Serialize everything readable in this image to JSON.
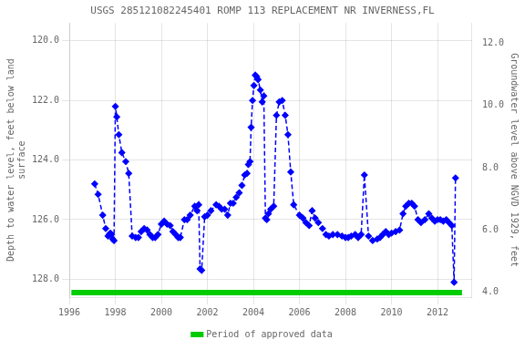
{
  "chart_data": {
    "type": "line",
    "title": "USGS 285121082245401 ROMP 113 REPLACEMENT NR INVERNESS,FL",
    "ylabel": "Depth to water level, feet below land\nsurface",
    "y2label": "Groundwater level above NGVD 1929, feet",
    "xlim": [
      1996.0,
      2013.5
    ],
    "xticks": [
      1996,
      1998,
      2000,
      2002,
      2004,
      2006,
      2008,
      2010,
      2012
    ],
    "ylim": [
      128.6,
      119.4
    ],
    "yticks": [
      {
        "value": 120.0,
        "label": "120.0"
      },
      {
        "value": 122.0,
        "label": "122.0"
      },
      {
        "value": 124.0,
        "label": "124.0"
      },
      {
        "value": 126.0,
        "label": "126.0"
      },
      {
        "value": 128.0,
        "label": "128.0"
      }
    ],
    "y2lim": [
      3.85,
      12.65
    ],
    "y2ticks": [
      {
        "value": 4.0,
        "label": "4.0"
      },
      {
        "value": 6.0,
        "label": "6.0"
      },
      {
        "value": 8.0,
        "label": "8.0"
      },
      {
        "value": 10.0,
        "label": "10.0"
      },
      {
        "value": 12.0,
        "label": "12.0"
      }
    ],
    "grid": true,
    "legend": "bottom",
    "series": [
      {
        "color": "#0000FF",
        "marker": "diamond",
        "line_style": "dashed",
        "x": [
          1997.1,
          1997.25,
          1997.45,
          1997.58,
          1997.68,
          1997.73,
          1997.78,
          1997.83,
          1997.88,
          1997.94,
          1998.0,
          1998.06,
          1998.15,
          1998.28,
          1998.45,
          1998.58,
          1998.73,
          1998.88,
          1999.0,
          1999.12,
          1999.25,
          1999.38,
          1999.5,
          1999.62,
          1999.73,
          1999.85,
          2000.0,
          2000.12,
          2000.25,
          2000.38,
          2000.5,
          2000.62,
          2000.73,
          2000.82,
          2001.0,
          2001.12,
          2001.25,
          2001.45,
          2001.55,
          2001.62,
          2001.68,
          2001.75,
          2001.88,
          2002.0,
          2002.15,
          2002.38,
          2002.5,
          2002.62,
          2002.75,
          2002.88,
          2003.0,
          2003.12,
          2003.25,
          2003.38,
          2003.5,
          2003.62,
          2003.72,
          2003.78,
          2003.85,
          2003.9,
          2003.96,
          2004.02,
          2004.08,
          2004.14,
          2004.2,
          2004.3,
          2004.38,
          2004.45,
          2004.52,
          2004.58,
          2004.65,
          2004.75,
          2004.88,
          2005.0,
          2005.12,
          2005.25,
          2005.38,
          2005.5,
          2005.62,
          2005.75,
          2006.0,
          2006.15,
          2006.28,
          2006.42,
          2006.55,
          2006.68,
          2006.82,
          2007.0,
          2007.15,
          2007.28,
          2007.45,
          2007.65,
          2007.85,
          2008.0,
          2008.12,
          2008.25,
          2008.42,
          2008.55,
          2008.68,
          2008.82,
          2009.0,
          2009.18,
          2009.38,
          2009.5,
          2009.62,
          2009.75,
          2009.88,
          2010.0,
          2010.18,
          2010.35,
          2010.5,
          2010.62,
          2010.75,
          2010.88,
          2011.0,
          2011.15,
          2011.28,
          2011.45,
          2011.62,
          2011.75,
          2011.88,
          2012.0,
          2012.12,
          2012.25,
          2012.38,
          2012.5,
          2012.62,
          2012.72,
          2012.78
        ],
        "values": [
          124.8,
          125.15,
          125.85,
          126.3,
          126.55,
          126.5,
          126.45,
          126.5,
          126.65,
          126.7,
          122.2,
          122.55,
          123.15,
          123.75,
          124.05,
          124.45,
          126.55,
          126.6,
          126.6,
          126.4,
          126.3,
          126.35,
          126.5,
          126.6,
          126.6,
          126.5,
          126.15,
          126.05,
          126.15,
          126.2,
          126.4,
          126.5,
          126.6,
          126.6,
          126.0,
          126.0,
          125.85,
          125.55,
          125.7,
          125.5,
          127.65,
          127.7,
          125.9,
          125.85,
          125.7,
          125.5,
          125.55,
          125.65,
          125.65,
          125.85,
          125.45,
          125.45,
          125.25,
          125.1,
          124.85,
          124.5,
          124.45,
          124.15,
          124.05,
          122.9,
          122.0,
          121.5,
          121.15,
          121.2,
          121.3,
          121.65,
          122.05,
          121.85,
          125.95,
          126.0,
          125.8,
          125.65,
          125.55,
          122.5,
          122.05,
          122.0,
          122.5,
          123.15,
          124.4,
          125.5,
          125.85,
          125.95,
          126.1,
          126.2,
          125.7,
          125.95,
          126.1,
          126.3,
          126.5,
          126.55,
          126.5,
          126.5,
          126.55,
          126.6,
          126.6,
          126.55,
          126.5,
          126.6,
          126.5,
          124.5,
          126.55,
          126.7,
          126.65,
          126.6,
          126.5,
          126.4,
          126.5,
          126.45,
          126.4,
          126.35,
          125.8,
          125.55,
          125.45,
          125.45,
          125.55,
          126.0,
          126.1,
          126.0,
          125.8,
          125.95,
          126.05,
          126.0,
          126.0,
          126.05,
          126.0,
          126.1,
          126.2,
          128.1,
          124.6
        ]
      },
      {
        "name": "Period of approved data",
        "color": "#00cc00",
        "marker": "none",
        "line_style": "solid",
        "x": [
          1996.0875,
          2013.0625
        ],
        "values": [
          128.45,
          128.45
        ]
      }
    ]
  }
}
